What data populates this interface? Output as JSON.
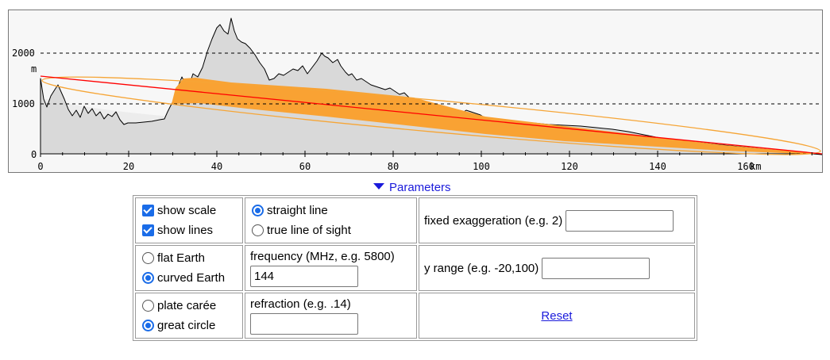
{
  "profile": {
    "y_unit": "m",
    "x_unit": "km",
    "y_ticks": [
      "2000",
      "1000",
      "0"
    ],
    "x_ticks": [
      "0",
      "20",
      "40",
      "60",
      "80",
      "100",
      "120",
      "140",
      "160"
    ],
    "colors": {
      "terrain": "#d8d8d8",
      "fresnel": "#f9a233",
      "line": "#ff0000",
      "curve": "#f6a536"
    }
  },
  "parameters_toggle": "Parameters",
  "options": {
    "show_scale": {
      "label": "show scale",
      "checked": true
    },
    "show_lines": {
      "label": "show lines",
      "checked": true
    },
    "straight_line": {
      "label": "straight line",
      "selected": true
    },
    "true_line_of_sight": {
      "label": "true line of sight",
      "selected": false
    },
    "fixed_exaggeration": {
      "label": "fixed exaggeration (e.g. 2)",
      "value": ""
    },
    "flat_earth": {
      "label": "flat Earth",
      "selected": false
    },
    "curved_earth": {
      "label": "curved Earth",
      "selected": true
    },
    "frequency": {
      "label": "frequency (MHz, e.g. 5800)",
      "value": "144"
    },
    "y_range": {
      "label": "y range (e.g. -20,100)",
      "value": ""
    },
    "plate_caree": {
      "label": "plate carée",
      "selected": false
    },
    "great_circle": {
      "label": "great circle",
      "selected": true
    },
    "refraction": {
      "label": "refraction (e.g. .14)",
      "value": ""
    },
    "reset": "Reset"
  }
}
